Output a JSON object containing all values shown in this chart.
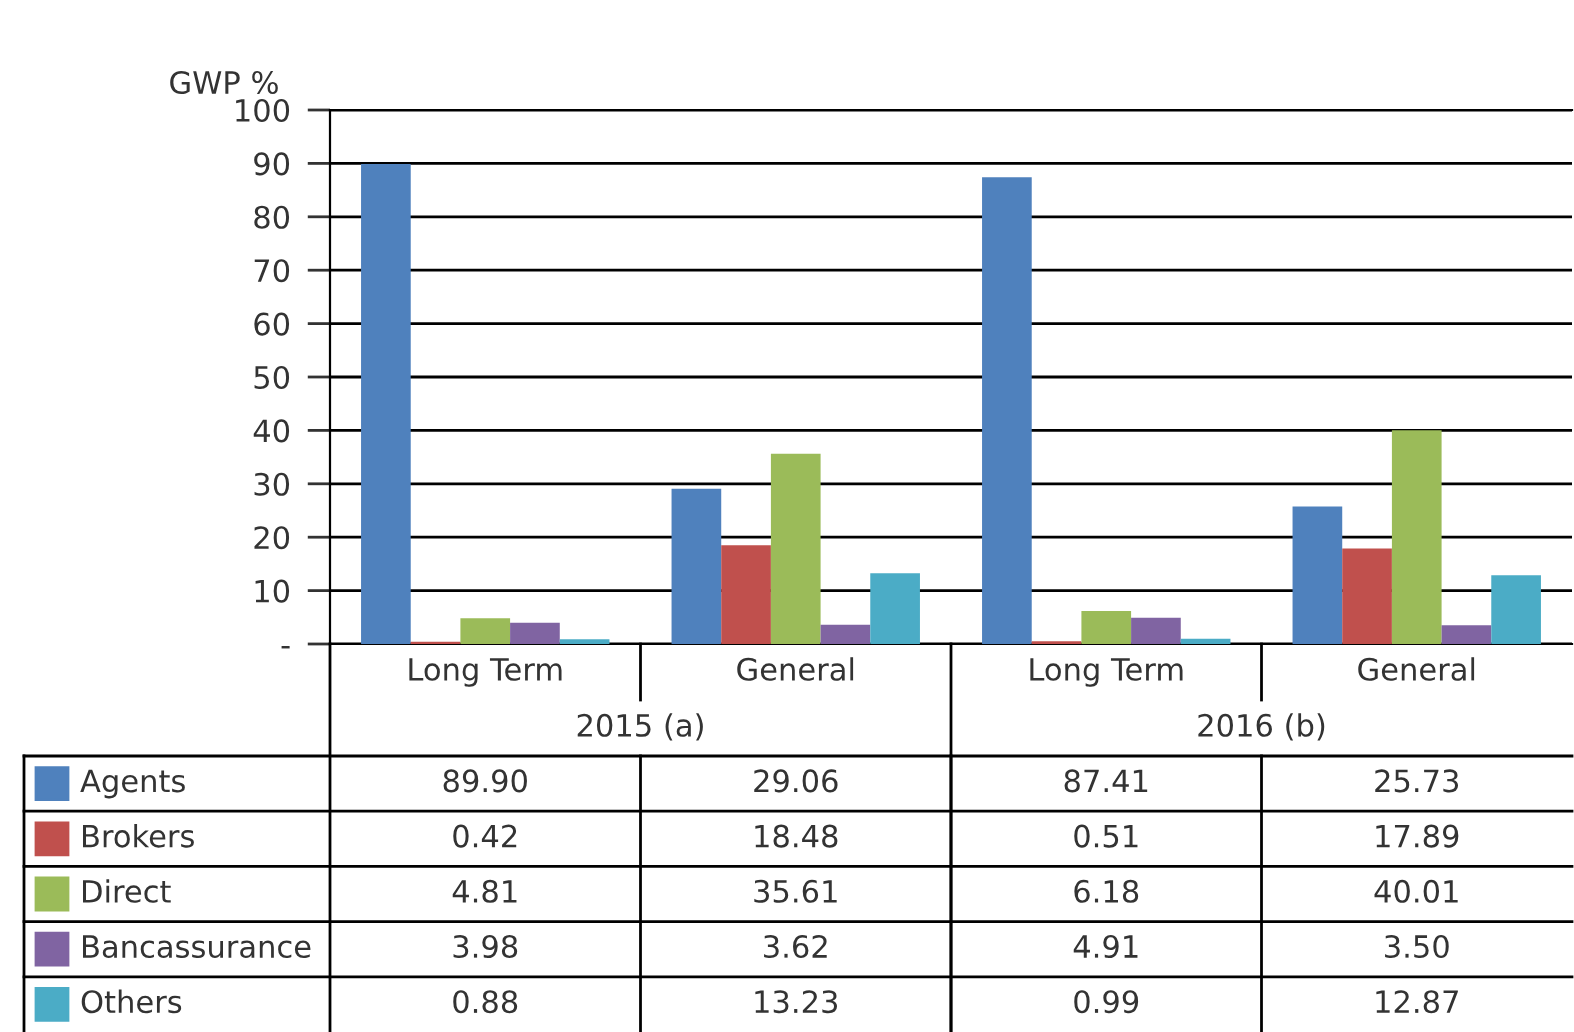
{
  "chart_data": {
    "type": "bar",
    "ylabel": "GWP %",
    "categories": [
      "Long Term",
      "General",
      "Long Term",
      "General"
    ],
    "annotations": [
      "2015 (a)",
      "2016 (b)"
    ],
    "series": [
      {
        "name": "Agents",
        "color": "#4f81bd",
        "values": [
          89.9,
          29.06,
          87.41,
          25.73
        ],
        "value_labels": [
          "89.90",
          "29.06",
          "87.41",
          "25.73"
        ]
      },
      {
        "name": "Brokers",
        "color": "#c0504d",
        "values": [
          0.42,
          18.48,
          0.51,
          17.89
        ],
        "value_labels": [
          "0.42",
          "18.48",
          "0.51",
          "17.89"
        ]
      },
      {
        "name": "Direct",
        "color": "#9bbb59",
        "values": [
          4.81,
          35.61,
          6.18,
          40.01
        ],
        "value_labels": [
          "4.81",
          "35.61",
          "6.18",
          "40.01"
        ]
      },
      {
        "name": "Bancassurance",
        "color": "#8064a2",
        "values": [
          3.98,
          3.62,
          4.91,
          3.5
        ],
        "value_labels": [
          "3.98",
          "3.62",
          "4.91",
          "3.50"
        ]
      },
      {
        "name": "Others",
        "color": "#4bacc6",
        "values": [
          0.88,
          13.23,
          0.99,
          12.87
        ],
        "value_labels": [
          "0.88",
          "13.23",
          "0.99",
          "12.87"
        ]
      }
    ],
    "ylim": [
      0,
      100
    ],
    "yticks": [
      {
        "value": 0,
        "label": "-"
      },
      10,
      20,
      30,
      40,
      50,
      60,
      70,
      80,
      90,
      100
    ],
    "grid": "y",
    "legend": "bottom"
  }
}
